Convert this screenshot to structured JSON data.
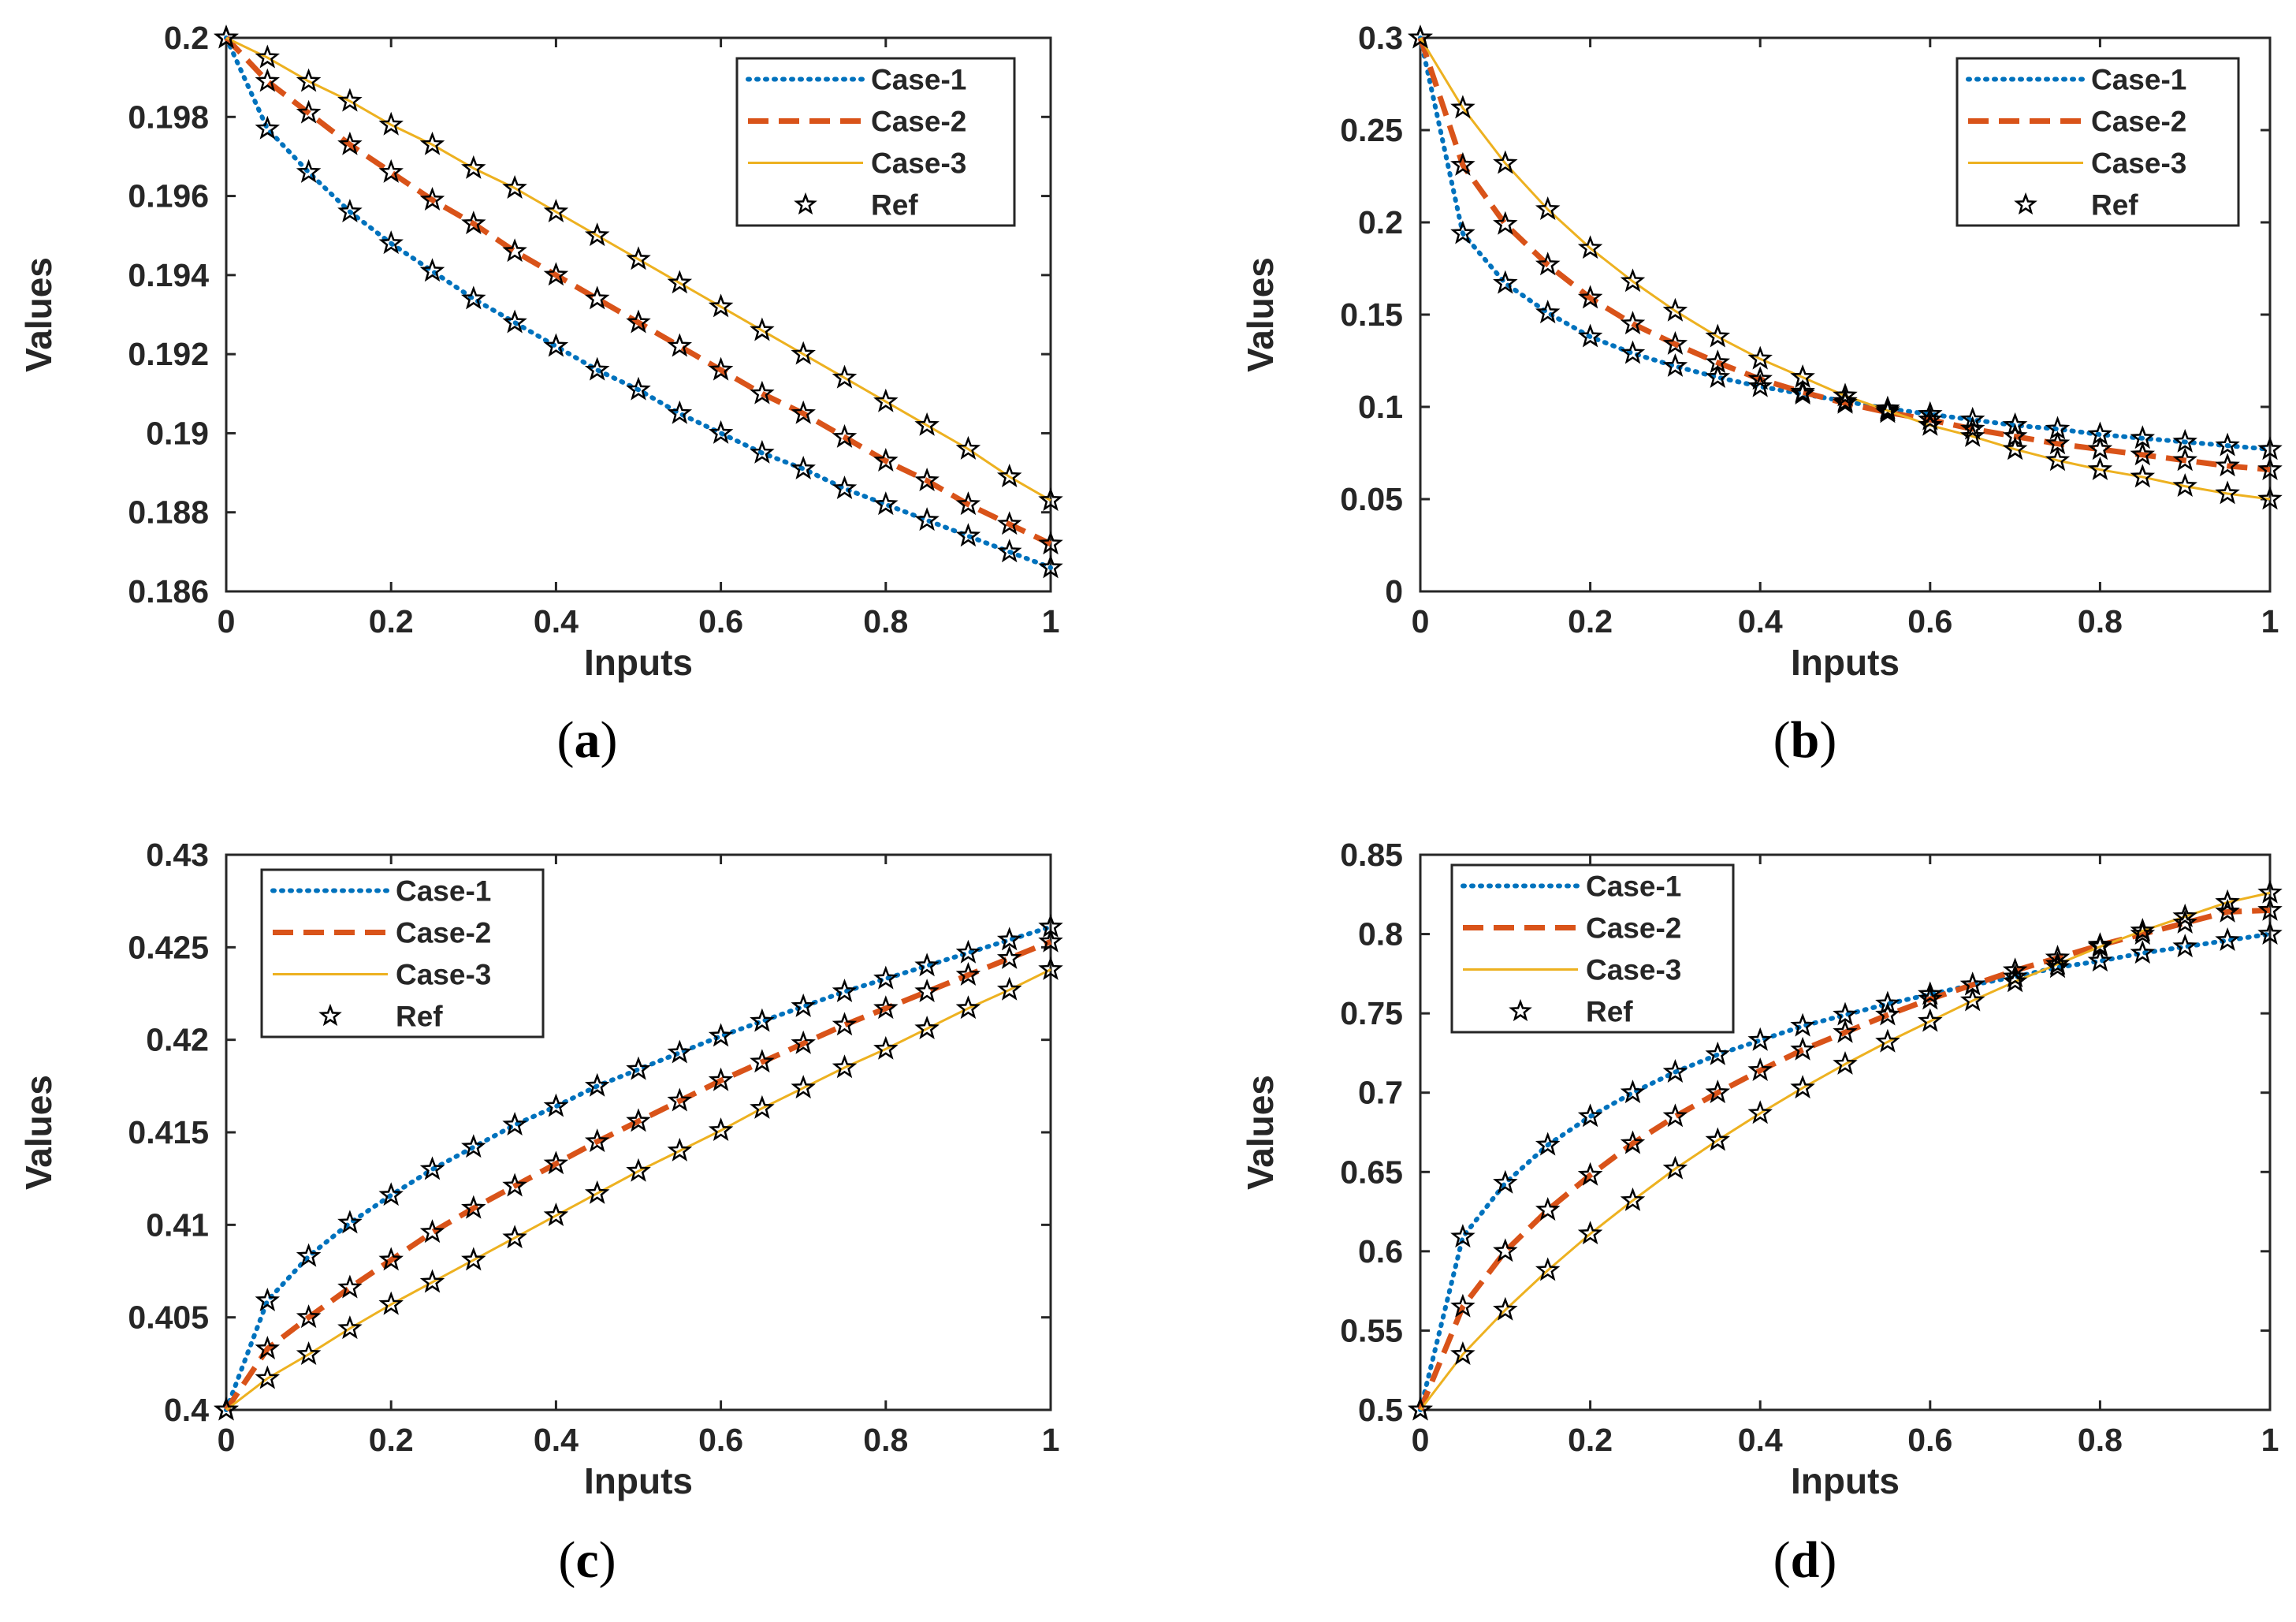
{
  "figure": {
    "panels": [
      "a",
      "b",
      "c",
      "d"
    ]
  },
  "chart_data": [
    {
      "type": "line",
      "panel": "a",
      "caption_label": "a",
      "xlabel": "Inputs",
      "ylabel": "Values",
      "xlim": [
        0,
        1
      ],
      "ylim": [
        0.186,
        0.2
      ],
      "xticks": [
        0,
        0.2,
        0.4,
        0.6,
        0.8,
        1
      ],
      "xtick_labels": [
        "0",
        "0.2",
        "0.4",
        "0.6",
        "0.8",
        "1"
      ],
      "yticks": [
        0.186,
        0.188,
        0.19,
        0.192,
        0.194,
        0.196,
        0.198,
        0.2
      ],
      "ytick_labels": [
        "0.186",
        "0.188",
        "0.19",
        "0.192",
        "0.194",
        "0.196",
        "0.198",
        "0.2"
      ],
      "legend_position": "top-right",
      "x": [
        0,
        0.05,
        0.1,
        0.15,
        0.2,
        0.25,
        0.3,
        0.35,
        0.4,
        0.45,
        0.5,
        0.55,
        0.6,
        0.65,
        0.7,
        0.75,
        0.8,
        0.85,
        0.9,
        0.95,
        1
      ],
      "series": [
        {
          "name": "Case-1",
          "style": "dotted",
          "color": "#0072BD",
          "values": [
            0.2,
            0.1977,
            0.1966,
            0.1956,
            0.1948,
            0.1941,
            0.1934,
            0.1928,
            0.1922,
            0.1916,
            0.1911,
            0.1905,
            0.19,
            0.1895,
            0.1891,
            0.1886,
            0.1882,
            0.1878,
            0.1874,
            0.187,
            0.1866
          ]
        },
        {
          "name": "Case-2",
          "style": "dashed",
          "color": "#D95319",
          "values": [
            0.2,
            0.1989,
            0.1981,
            0.1973,
            0.1966,
            0.1959,
            0.1953,
            0.1946,
            0.194,
            0.1934,
            0.1928,
            0.1922,
            0.1916,
            0.191,
            0.1905,
            0.1899,
            0.1893,
            0.1888,
            0.1882,
            0.1877,
            0.1872
          ]
        },
        {
          "name": "Case-3",
          "style": "solid",
          "color": "#EDB120",
          "values": [
            0.2,
            0.1995,
            0.1989,
            0.1984,
            0.1978,
            0.1973,
            0.1967,
            0.1962,
            0.1956,
            0.195,
            0.1944,
            0.1938,
            0.1932,
            0.1926,
            0.192,
            0.1914,
            0.1908,
            0.1902,
            0.1896,
            0.1889,
            0.1883
          ]
        },
        {
          "name": "Ref",
          "style": "star",
          "color": "#000000",
          "markers_on": [
            "Case-1",
            "Case-2",
            "Case-3"
          ]
        }
      ]
    },
    {
      "type": "line",
      "panel": "b",
      "caption_label": "b",
      "xlabel": "Inputs",
      "ylabel": "Values",
      "xlim": [
        0,
        1
      ],
      "ylim": [
        0,
        0.3
      ],
      "xticks": [
        0,
        0.2,
        0.4,
        0.6,
        0.8,
        1
      ],
      "xtick_labels": [
        "0",
        "0.2",
        "0.4",
        "0.6",
        "0.8",
        "1"
      ],
      "yticks": [
        0,
        0.05,
        0.1,
        0.15,
        0.2,
        0.25,
        0.3
      ],
      "ytick_labels": [
        "0",
        "0.05",
        "0.1",
        "0.15",
        "0.2",
        "0.25",
        "0.3"
      ],
      "legend_position": "top-right",
      "x": [
        0,
        0.05,
        0.1,
        0.15,
        0.2,
        0.25,
        0.3,
        0.35,
        0.4,
        0.45,
        0.5,
        0.55,
        0.6,
        0.65,
        0.7,
        0.75,
        0.8,
        0.85,
        0.9,
        0.95,
        1
      ],
      "series": [
        {
          "name": "Case-1",
          "style": "dotted",
          "color": "#0072BD",
          "values": [
            0.3,
            0.194,
            0.167,
            0.151,
            0.138,
            0.129,
            0.122,
            0.116,
            0.111,
            0.107,
            0.103,
            0.099,
            0.096,
            0.093,
            0.09,
            0.088,
            0.085,
            0.083,
            0.081,
            0.079,
            0.077
          ]
        },
        {
          "name": "Case-2",
          "style": "dashed",
          "color": "#D95319",
          "values": [
            0.3,
            0.231,
            0.199,
            0.177,
            0.159,
            0.145,
            0.134,
            0.124,
            0.115,
            0.108,
            0.102,
            0.097,
            0.093,
            0.088,
            0.084,
            0.08,
            0.077,
            0.074,
            0.071,
            0.068,
            0.066
          ]
        },
        {
          "name": "Case-3",
          "style": "solid",
          "color": "#EDB120",
          "values": [
            0.3,
            0.262,
            0.232,
            0.207,
            0.186,
            0.168,
            0.152,
            0.138,
            0.126,
            0.116,
            0.106,
            0.098,
            0.09,
            0.084,
            0.077,
            0.071,
            0.066,
            0.062,
            0.057,
            0.053,
            0.05
          ]
        },
        {
          "name": "Ref",
          "style": "star",
          "color": "#000000",
          "markers_on": [
            "Case-1",
            "Case-2",
            "Case-3"
          ]
        }
      ]
    },
    {
      "type": "line",
      "panel": "c",
      "caption_label": "c",
      "xlabel": "Inputs",
      "ylabel": "Values",
      "xlim": [
        0,
        1
      ],
      "ylim": [
        0.4,
        0.43
      ],
      "xticks": [
        0,
        0.2,
        0.4,
        0.6,
        0.8,
        1
      ],
      "xtick_labels": [
        "0",
        "0.2",
        "0.4",
        "0.6",
        "0.8",
        "1"
      ],
      "yticks": [
        0.4,
        0.405,
        0.41,
        0.415,
        0.42,
        0.425,
        0.43
      ],
      "ytick_labels": [
        "0.4",
        "0.405",
        "0.41",
        "0.415",
        "0.42",
        "0.425",
        "0.43"
      ],
      "legend_position": "top-left",
      "x": [
        0,
        0.05,
        0.1,
        0.15,
        0.2,
        0.25,
        0.3,
        0.35,
        0.4,
        0.45,
        0.5,
        0.55,
        0.6,
        0.65,
        0.7,
        0.75,
        0.8,
        0.85,
        0.9,
        0.95,
        1
      ],
      "series": [
        {
          "name": "Case-1",
          "style": "dotted",
          "color": "#0072BD",
          "values": [
            0.4,
            0.4059,
            0.4083,
            0.4101,
            0.4116,
            0.413,
            0.4142,
            0.4154,
            0.4164,
            0.4175,
            0.4184,
            0.4193,
            0.4202,
            0.421,
            0.4218,
            0.4226,
            0.4233,
            0.424,
            0.4247,
            0.4254,
            0.4261
          ]
        },
        {
          "name": "Case-2",
          "style": "dashed",
          "color": "#D95319",
          "values": [
            0.4,
            0.4033,
            0.405,
            0.4066,
            0.4081,
            0.4096,
            0.4109,
            0.4121,
            0.4133,
            0.4145,
            0.4156,
            0.4167,
            0.4178,
            0.4188,
            0.4198,
            0.4208,
            0.4217,
            0.4226,
            0.4235,
            0.4244,
            0.4253
          ]
        },
        {
          "name": "Case-3",
          "style": "solid",
          "color": "#EDB120",
          "values": [
            0.4,
            0.4017,
            0.403,
            0.4044,
            0.4057,
            0.4069,
            0.4081,
            0.4093,
            0.4105,
            0.4117,
            0.4129,
            0.414,
            0.4151,
            0.4163,
            0.4174,
            0.4185,
            0.4195,
            0.4206,
            0.4217,
            0.4227,
            0.4238
          ]
        },
        {
          "name": "Ref",
          "style": "star",
          "color": "#000000",
          "markers_on": [
            "Case-1",
            "Case-2",
            "Case-3"
          ]
        }
      ]
    },
    {
      "type": "line",
      "panel": "d",
      "caption_label": "d",
      "xlabel": "Inputs",
      "ylabel": "Values",
      "xlim": [
        0,
        1
      ],
      "ylim": [
        0.5,
        0.85
      ],
      "xticks": [
        0,
        0.2,
        0.4,
        0.6,
        0.8,
        1
      ],
      "xtick_labels": [
        "0",
        "0.2",
        "0.4",
        "0.6",
        "0.8",
        "1"
      ],
      "yticks": [
        0.5,
        0.55,
        0.6,
        0.65,
        0.7,
        0.75,
        0.8,
        0.85
      ],
      "ytick_labels": [
        "0.5",
        "0.55",
        "0.6",
        "0.65",
        "0.7",
        "0.75",
        "0.8",
        "0.85"
      ],
      "legend_position": "top-left",
      "x": [
        0,
        0.05,
        0.1,
        0.15,
        0.2,
        0.25,
        0.3,
        0.35,
        0.4,
        0.45,
        0.5,
        0.55,
        0.6,
        0.65,
        0.7,
        0.75,
        0.8,
        0.85,
        0.9,
        0.95,
        1
      ],
      "series": [
        {
          "name": "Case-1",
          "style": "dotted",
          "color": "#0072BD",
          "values": [
            0.5,
            0.609,
            0.643,
            0.667,
            0.685,
            0.7,
            0.713,
            0.724,
            0.733,
            0.742,
            0.749,
            0.756,
            0.762,
            0.768,
            0.773,
            0.779,
            0.783,
            0.788,
            0.792,
            0.796,
            0.8
          ]
        },
        {
          "name": "Case-2",
          "style": "dashed",
          "color": "#D95319",
          "values": [
            0.5,
            0.565,
            0.6,
            0.626,
            0.648,
            0.668,
            0.685,
            0.7,
            0.714,
            0.727,
            0.738,
            0.749,
            0.759,
            0.768,
            0.777,
            0.785,
            0.793,
            0.8,
            0.807,
            0.814,
            0.815
          ]
        },
        {
          "name": "Case-3",
          "style": "solid",
          "color": "#EDB120",
          "values": [
            0.5,
            0.535,
            0.563,
            0.588,
            0.611,
            0.632,
            0.652,
            0.67,
            0.687,
            0.703,
            0.718,
            0.732,
            0.745,
            0.758,
            0.77,
            0.781,
            0.792,
            0.802,
            0.811,
            0.82,
            0.826
          ]
        },
        {
          "name": "Ref",
          "style": "star",
          "color": "#000000",
          "markers_on": [
            "Case-1",
            "Case-2",
            "Case-3"
          ]
        }
      ]
    }
  ]
}
